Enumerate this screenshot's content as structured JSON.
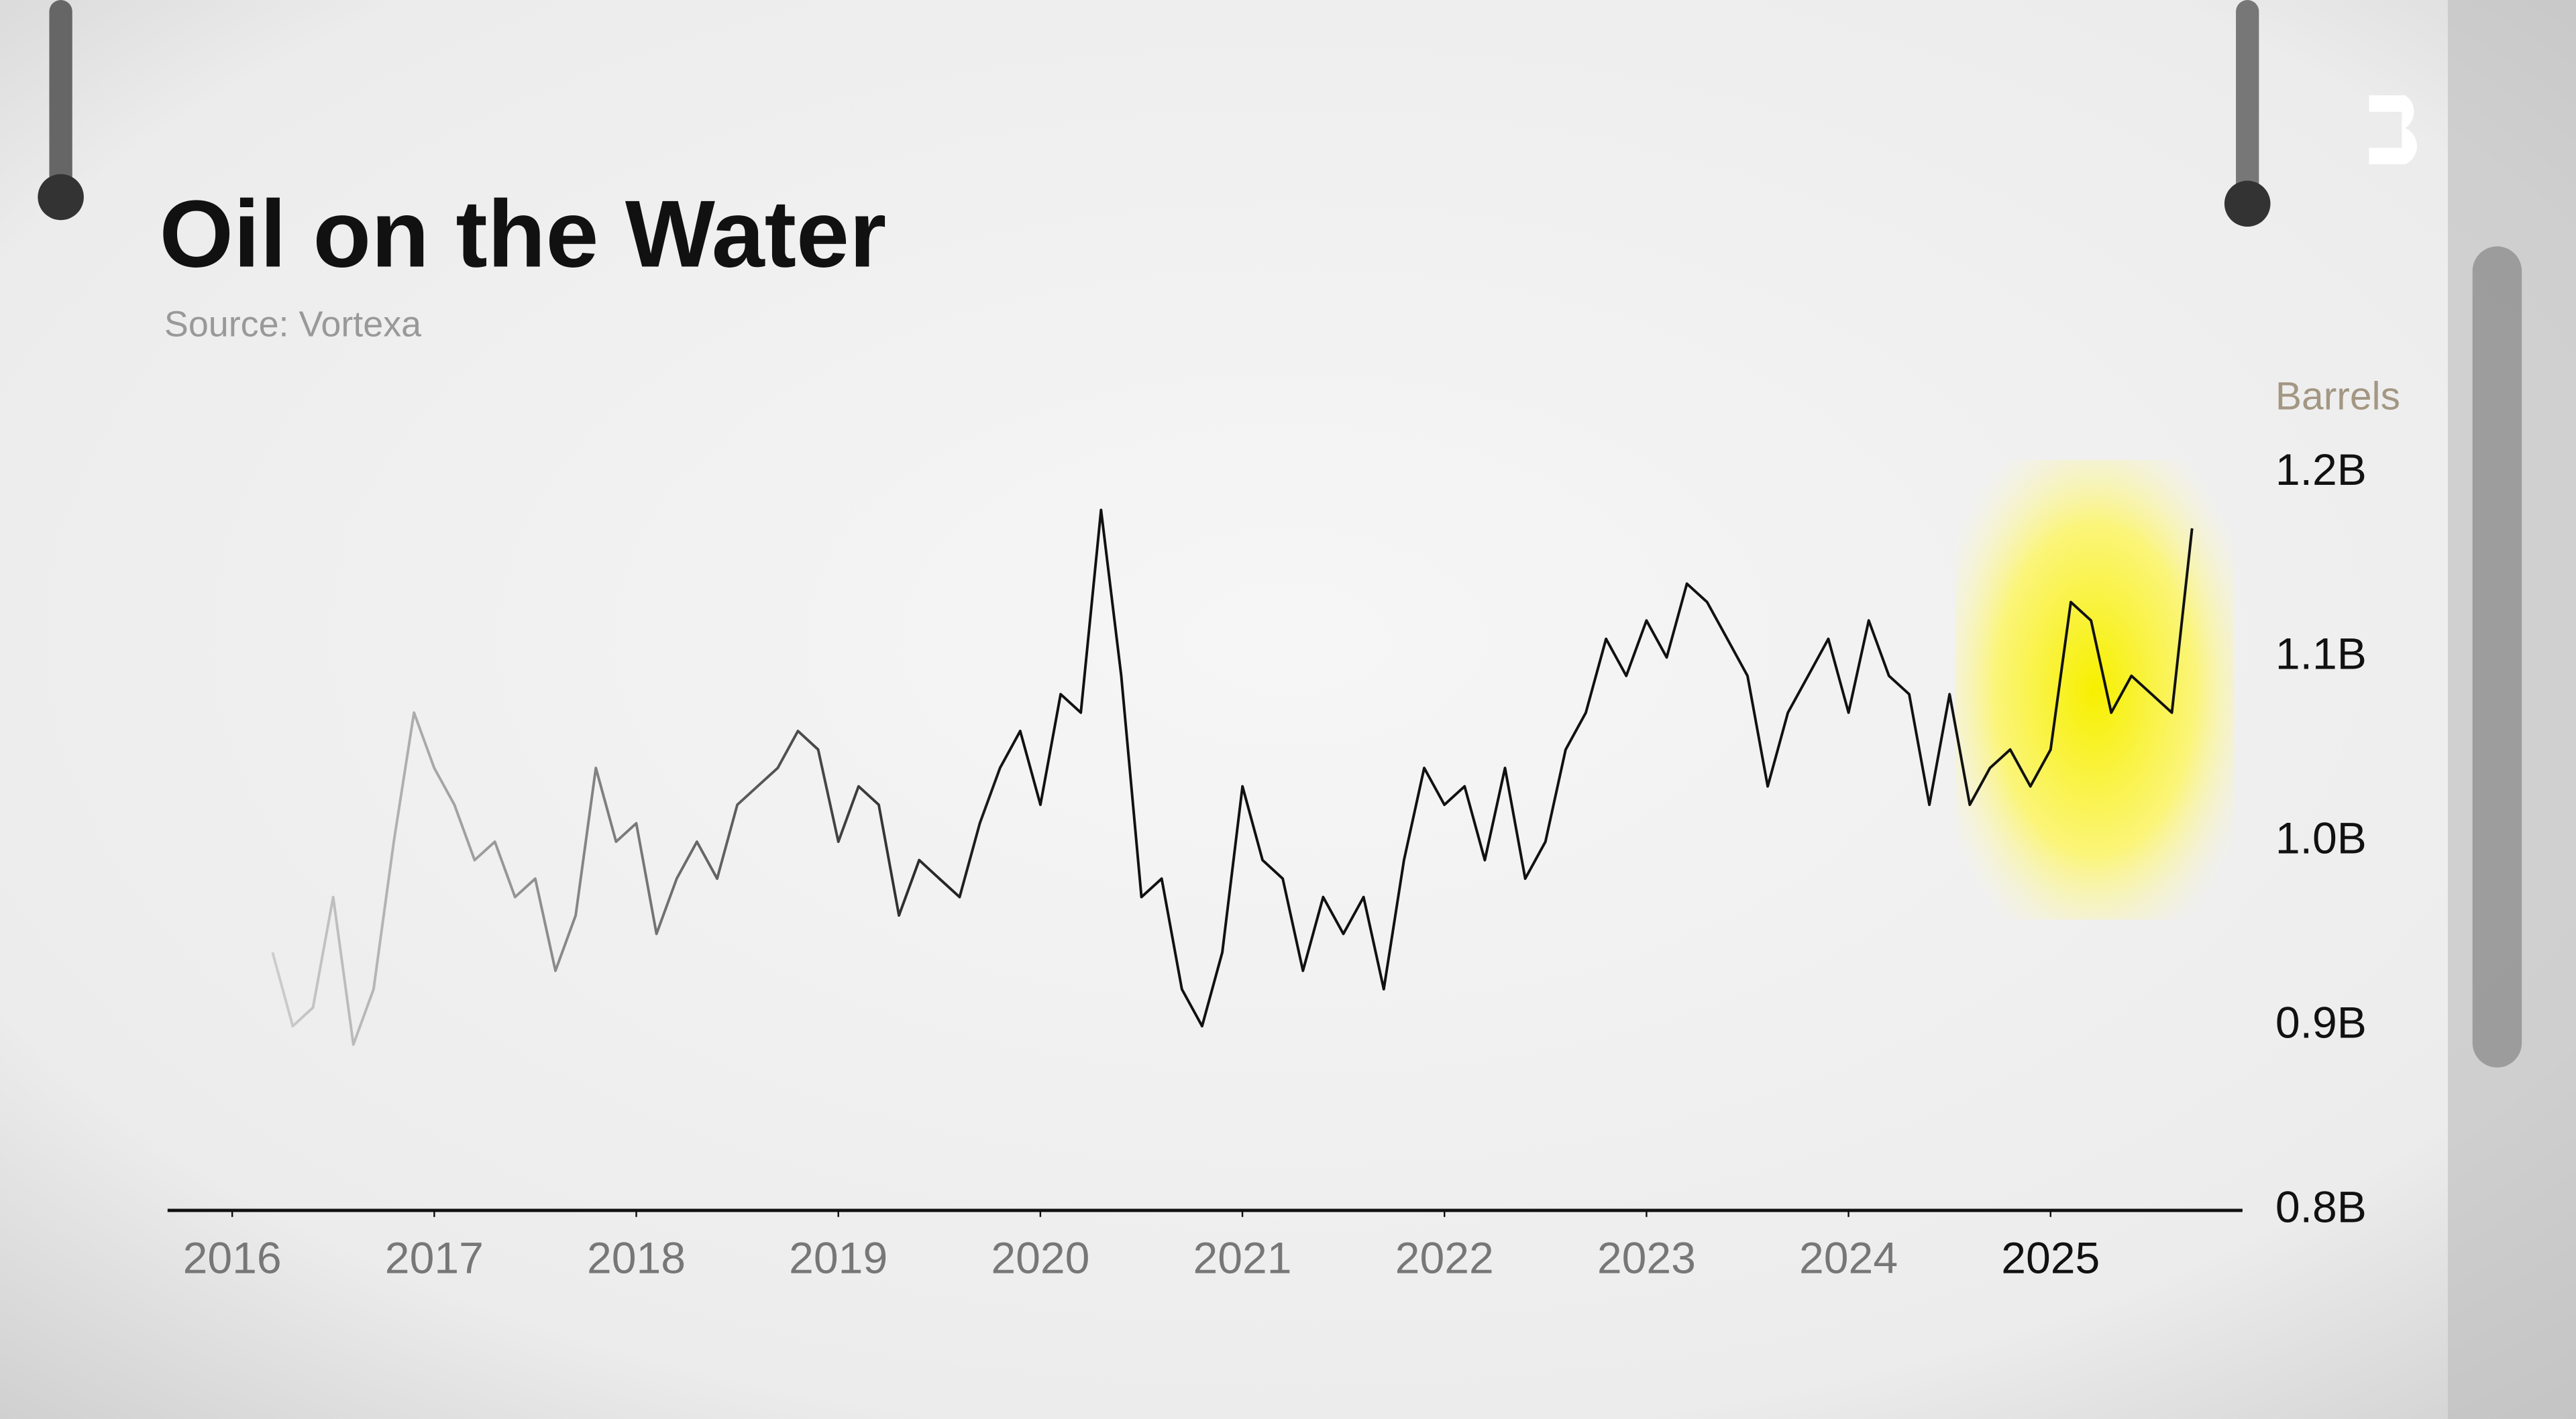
{
  "chart_data": {
    "type": "line",
    "title": "Oil on the Water",
    "subtitle": "Source: Vortexa",
    "y_label": "Barrels",
    "x": [
      2016.2,
      2016.3,
      2016.4,
      2016.5,
      2016.6,
      2016.7,
      2016.8,
      2016.9,
      2017.0,
      2017.1,
      2017.2,
      2017.3,
      2017.4,
      2017.5,
      2017.6,
      2017.7,
      2017.8,
      2017.9,
      2018.0,
      2018.1,
      2018.2,
      2018.3,
      2018.4,
      2018.5,
      2018.6,
      2018.7,
      2018.8,
      2018.9,
      2019.0,
      2019.1,
      2019.2,
      2019.3,
      2019.4,
      2019.5,
      2019.6,
      2019.7,
      2019.8,
      2019.9,
      2020.0,
      2020.1,
      2020.2,
      2020.3,
      2020.4,
      2020.5,
      2020.6,
      2020.7,
      2020.8,
      2020.9,
      2021.0,
      2021.1,
      2021.2,
      2021.3,
      2021.4,
      2021.5,
      2021.6,
      2021.7,
      2021.8,
      2021.9,
      2022.0,
      2022.1,
      2022.2,
      2022.3,
      2022.4,
      2022.5,
      2022.6,
      2022.7,
      2022.8,
      2022.9,
      2023.0,
      2023.1,
      2023.2,
      2023.3,
      2023.4,
      2023.5,
      2023.6,
      2023.7,
      2023.8,
      2023.9,
      2024.0,
      2024.1,
      2024.2,
      2024.3,
      2024.4,
      2024.5,
      2024.6,
      2024.7,
      2024.8,
      2024.9,
      2025.0,
      2025.1,
      2025.2,
      2025.3,
      2025.4,
      2025.5,
      2025.6,
      2025.7
    ],
    "series": [
      {
        "name": "Barrels",
        "color": "#111111",
        "values": [
          940000000,
          900000000,
          910000000,
          970000000,
          890000000,
          920000000,
          1000000000,
          1070000000,
          1040000000,
          1020000000,
          990000000,
          1000000000,
          970000000,
          980000000,
          930000000,
          960000000,
          1040000000,
          1000000000,
          1010000000,
          950000000,
          980000000,
          1000000000,
          980000000,
          1020000000,
          1030000000,
          1040000000,
          1060000000,
          1050000000,
          1000000000,
          1030000000,
          1020000000,
          960000000,
          990000000,
          980000000,
          970000000,
          1010000000,
          1040000000,
          1060000000,
          1020000000,
          1080000000,
          1070000000,
          1180000000,
          1090000000,
          970000000,
          980000000,
          920000000,
          900000000,
          940000000,
          1030000000,
          990000000,
          980000000,
          930000000,
          970000000,
          950000000,
          970000000,
          920000000,
          990000000,
          1040000000,
          1020000000,
          1030000000,
          990000000,
          1040000000,
          980000000,
          1000000000,
          1050000000,
          1070000000,
          1110000000,
          1090000000,
          1120000000,
          1100000000,
          1140000000,
          1130000000,
          1110000000,
          1090000000,
          1030000000,
          1070000000,
          1090000000,
          1110000000,
          1070000000,
          1120000000,
          1090000000,
          1080000000,
          1020000000,
          1080000000,
          1020000000,
          1040000000,
          1050000000,
          1030000000,
          1050000000,
          1130000000,
          1120000000,
          1070000000,
          1090000000,
          1080000000,
          1070000000,
          1170000000
        ]
      }
    ],
    "xlim": [
      2015.68,
      2025.95
    ],
    "xticks": [
      2016,
      2017,
      2018,
      2019,
      2020,
      2021,
      2022,
      2023,
      2024,
      2025
    ],
    "ylim": [
      800000000,
      1200000000
    ],
    "yticks": [
      {
        "value": 800000000,
        "label": "0.8B"
      },
      {
        "value": 900000000,
        "label": "0.9B"
      },
      {
        "value": 1000000000,
        "label": "1.0B"
      },
      {
        "value": 1100000000,
        "label": "1.1B"
      },
      {
        "value": 1200000000,
        "label": "1.2B"
      }
    ],
    "grid": false
  }
}
